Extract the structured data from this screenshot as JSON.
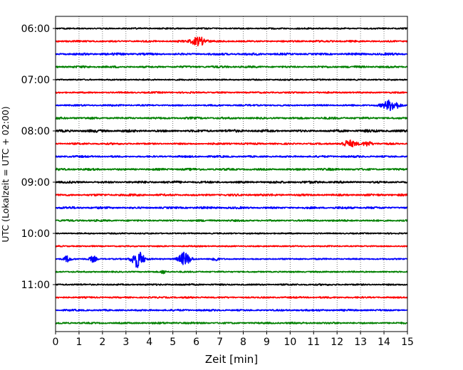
{
  "chart_data": {
    "type": "line",
    "title": "",
    "xlabel": "Zeit  [min]",
    "ylabel": "UTC (Lokalzeit = UTC + 02:00)",
    "xlim": [
      0,
      15
    ],
    "x_ticks": [
      0,
      1,
      2,
      3,
      4,
      5,
      6,
      7,
      8,
      9,
      10,
      11,
      12,
      13,
      14,
      15
    ],
    "y_ticks": [
      "06:00",
      "07:00",
      "08:00",
      "09:00",
      "10:00",
      "11:00"
    ],
    "ylim_hours_utc": [
      5.75,
      12.0
    ],
    "trace_interval_min": 15,
    "grid": {
      "vertical_dotted": true,
      "horizontal": false
    },
    "color_cycle": [
      "#000000",
      "#ff0000",
      "#0000ff",
      "#008000"
    ],
    "series": [
      {
        "start": "06:00",
        "amplitude": 0.35,
        "bursts": []
      },
      {
        "start": "06:15",
        "amplitude": 0.55,
        "bursts": [
          {
            "at_min": 6.1,
            "level": 2.3,
            "width_min": 0.3
          }
        ]
      },
      {
        "start": "06:30",
        "amplitude": 0.8,
        "bursts": []
      },
      {
        "start": "06:45",
        "amplitude": 0.7,
        "bursts": []
      },
      {
        "start": "07:00",
        "amplitude": 0.3,
        "bursts": []
      },
      {
        "start": "07:15",
        "amplitude": 0.45,
        "bursts": []
      },
      {
        "start": "07:30",
        "amplitude": 0.45,
        "bursts": [
          {
            "at_min": 14.3,
            "level": 2.6,
            "width_min": 0.35
          }
        ]
      },
      {
        "start": "07:45",
        "amplitude": 0.7,
        "bursts": []
      },
      {
        "start": "08:00",
        "amplitude": 1.0,
        "bursts": []
      },
      {
        "start": "08:15",
        "amplitude": 0.55,
        "bursts": [
          {
            "at_min": 12.5,
            "level": 1.6,
            "width_min": 0.3
          },
          {
            "at_min": 13.3,
            "level": 1.2,
            "width_min": 0.2
          }
        ]
      },
      {
        "start": "08:30",
        "amplitude": 0.6,
        "bursts": []
      },
      {
        "start": "08:45",
        "amplitude": 0.75,
        "bursts": []
      },
      {
        "start": "09:00",
        "amplitude": 0.85,
        "bursts": []
      },
      {
        "start": "09:15",
        "amplitude": 0.75,
        "bursts": []
      },
      {
        "start": "09:30",
        "amplitude": 0.75,
        "bursts": []
      },
      {
        "start": "09:45",
        "amplitude": 0.55,
        "bursts": []
      },
      {
        "start": "10:00",
        "amplitude": 0.25,
        "bursts": []
      },
      {
        "start": "10:15",
        "amplitude": 0.25,
        "bursts": []
      },
      {
        "start": "10:30",
        "amplitude": 0.3,
        "bursts": [
          {
            "at_min": 0.5,
            "level": 1.6,
            "width_min": 0.15
          },
          {
            "at_min": 1.6,
            "level": 1.6,
            "width_min": 0.15
          },
          {
            "at_min": 3.5,
            "level": 4.6,
            "width_min": 0.25
          },
          {
            "at_min": 5.5,
            "level": 3.4,
            "width_min": 0.25
          },
          {
            "at_min": 6.8,
            "level": 1.3,
            "width_min": 0.12
          }
        ]
      },
      {
        "start": "10:45",
        "amplitude": 0.3,
        "bursts": [
          {
            "at_min": 4.6,
            "level": 1.0,
            "width_min": 0.1
          }
        ]
      },
      {
        "start": "11:00",
        "amplitude": 0.45,
        "bursts": []
      },
      {
        "start": "11:15",
        "amplitude": 0.45,
        "bursts": []
      },
      {
        "start": "11:30",
        "amplitude": 0.55,
        "bursts": []
      },
      {
        "start": "11:45",
        "amplitude": 0.55,
        "bursts": []
      }
    ]
  }
}
